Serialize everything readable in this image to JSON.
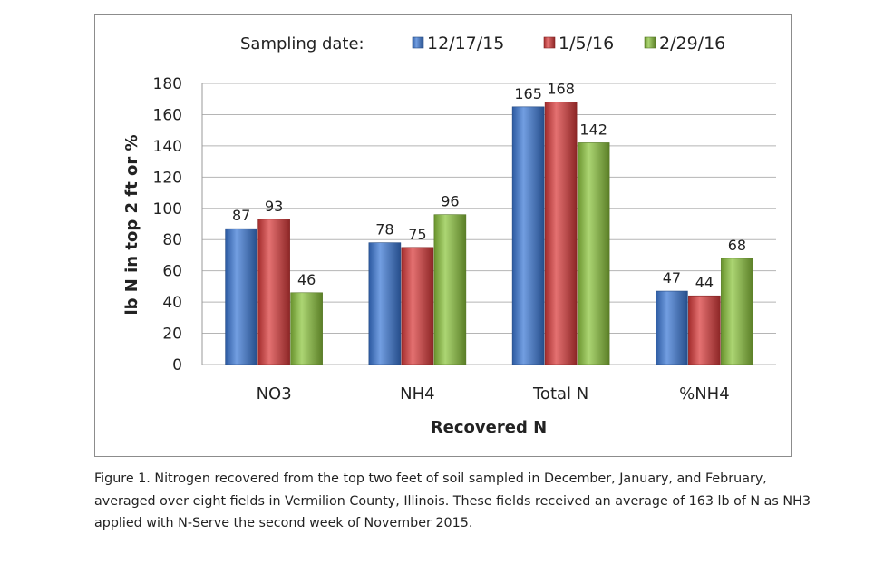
{
  "chart_data": {
    "type": "bar",
    "categories": [
      "NO3",
      "NH4",
      "Total N",
      "%NH4"
    ],
    "series": [
      {
        "name": "12/17/15",
        "values": [
          87,
          78,
          165,
          47
        ],
        "color": "#3b78d6"
      },
      {
        "name": "1/5/16",
        "values": [
          93,
          75,
          168,
          44
        ],
        "color": "#d93a3a"
      },
      {
        "name": "2/29/16",
        "values": [
          46,
          96,
          142,
          68
        ],
        "color": "#8cc43c"
      }
    ],
    "legend_title": "Sampling date:",
    "legend_position": "top",
    "xlabel": "Recovered N",
    "ylabel": "lb N in top 2 ft or %",
    "ylim": [
      0,
      180
    ],
    "yticks": [
      0,
      20,
      40,
      60,
      80,
      100,
      120,
      140,
      160,
      180
    ],
    "grid": true
  },
  "caption": "Figure 1. Nitrogen recovered from the top two feet of soil sampled in December, January, and February, averaged over eight fields in Vermilion County, Illinois. These fields received an average of 163 lb of N as NH3 applied with N-Serve the second week of November 2015."
}
